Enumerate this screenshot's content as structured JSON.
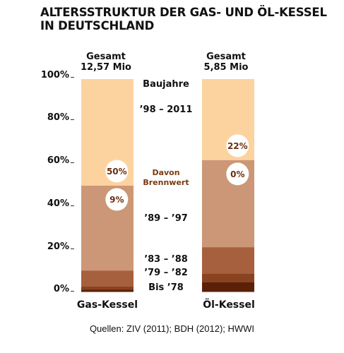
{
  "chart_data": {
    "type": "bar",
    "stacked": true,
    "title": "ALTERSSTRUKTUR DER GAS- UND ÖL-KESSEL IN DEUTSCHLAND",
    "title_lines": [
      "ALTERSSTRUKTUR DER GAS- UND ÖL-KESSEL",
      "IN DEUTSCHLAND"
    ],
    "categories": [
      "Gas-Kessel",
      "Öl-Kessel"
    ],
    "totals": [
      {
        "label": "Gesamt",
        "value": "12,57 Mio"
      },
      {
        "label": "Gesamt",
        "value": "5,85 Mio"
      }
    ],
    "legend_title": "Baujahre",
    "series": [
      {
        "name": "Bis '78",
        "label": "Bis ’78",
        "values": [
          1.0,
          4.5
        ],
        "color": "#5b2008"
      },
      {
        "name": "'79 – '82",
        "label": "’79 – ’82",
        "values": [
          1.5,
          4.0
        ],
        "color": "#8a4320"
      },
      {
        "name": "'83 – '88",
        "label": "’83 – ’88",
        "values": [
          7.5,
          12.5
        ],
        "color": "#a6603d"
      },
      {
        "name": "'89 – '97",
        "label": "’89 – ’97",
        "values": [
          40.0,
          41.0
        ],
        "color": "#cc9777"
      },
      {
        "name": "'98 – 2011",
        "label": "’98 – 2011",
        "values": [
          50.0,
          38.0
        ],
        "color": "#fcd39f"
      }
    ],
    "annotation_title": "Davon Brennwert",
    "annotations": [
      {
        "bar": 0,
        "series": "'98 – 2011",
        "label": "50%"
      },
      {
        "bar": 0,
        "series": "'89 – '97",
        "label": "9%"
      },
      {
        "bar": 1,
        "series": "'98 – 2011",
        "label": "22%"
      },
      {
        "bar": 1,
        "series": "'89 – '97",
        "label": "0%"
      }
    ],
    "yticks": [
      "0%",
      "20%",
      "40%",
      "60%",
      "80%",
      "100%"
    ],
    "ylim": [
      0,
      100
    ],
    "source": "Quellen: ZIV (2011); BDH (2012); HWWI"
  }
}
